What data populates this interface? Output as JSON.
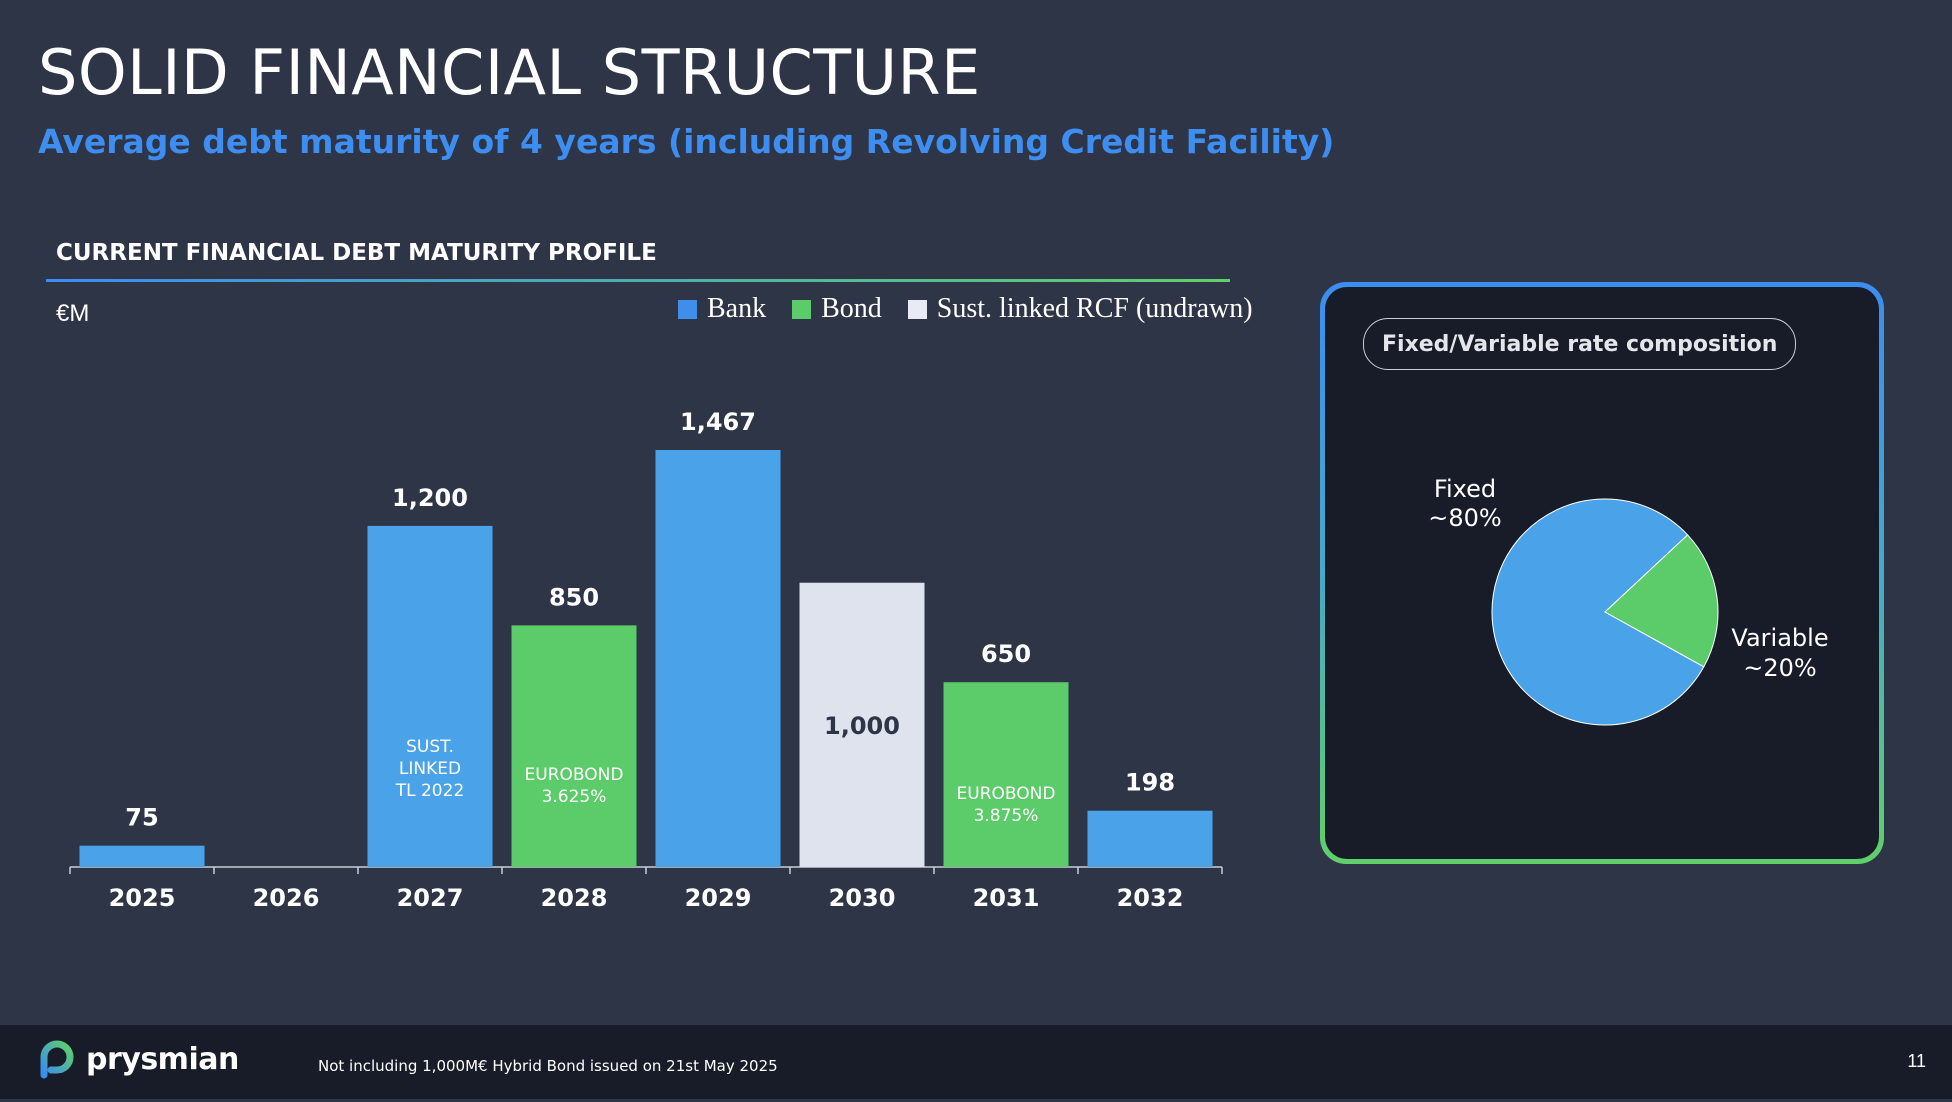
{
  "header": {
    "title": "SOLID FINANCIAL STRUCTURE",
    "subtitle": "Average debt maturity of 4 years (including Revolving Credit Facility)"
  },
  "section": {
    "title": "CURRENT FINANCIAL DEBT MATURITY PROFILE",
    "unit": "€M"
  },
  "legend": [
    {
      "label": "Bank",
      "color": "#4aa3e8"
    },
    {
      "label": "Bond",
      "color": "#5ccc6a"
    },
    {
      "label": "Sust. linked RCF (undrawn)",
      "color": "#dfe3ee"
    }
  ],
  "chart_data": [
    {
      "type": "bar",
      "title": "CURRENT FINANCIAL DEBT MATURITY PROFILE",
      "ylabel": "€M",
      "categories": [
        "2025",
        "2026",
        "2027",
        "2028",
        "2029",
        "2030",
        "2031",
        "2032"
      ],
      "series": [
        {
          "name": "Bank",
          "color": "#4aa3e8",
          "values": [
            75,
            0,
            1200,
            0,
            1467,
            0,
            0,
            198
          ]
        },
        {
          "name": "Bond",
          "color": "#5ccc6a",
          "values": [
            0,
            0,
            0,
            850,
            0,
            0,
            650,
            0
          ]
        },
        {
          "name": "Sust. linked RCF (undrawn)",
          "color": "#dfe3ee",
          "values": [
            0,
            0,
            0,
            0,
            0,
            1000,
            0,
            0
          ]
        }
      ],
      "data_labels": [
        "75",
        "",
        "1,200",
        "850",
        "1,467",
        "1,000",
        "650",
        "198"
      ],
      "bar_annotations": [
        {
          "category": "2027",
          "lines": [
            "SUST.",
            "LINKED",
            "TL 2022"
          ]
        },
        {
          "category": "2028",
          "lines": [
            "EUROBOND",
            "3.625%"
          ]
        },
        {
          "category": "2031",
          "lines": [
            "EUROBOND",
            "3.875%"
          ]
        }
      ],
      "ylim": [
        0,
        1600
      ],
      "grid": false,
      "legend_position": "top-right"
    },
    {
      "type": "pie",
      "title": "Fixed/Variable rate composition",
      "slices": [
        {
          "label": "Fixed",
          "value_label": "~80%",
          "value": 80,
          "color": "#4aa3e8"
        },
        {
          "label": "Variable",
          "value_label": "~20%",
          "value": 20,
          "color": "#5ccc6a"
        }
      ]
    }
  ],
  "footer": {
    "logo_text": "prysmian",
    "note": "Not including 1,000M€ Hybrid Bond issued on 21st May 2025",
    "page_number": "11"
  }
}
